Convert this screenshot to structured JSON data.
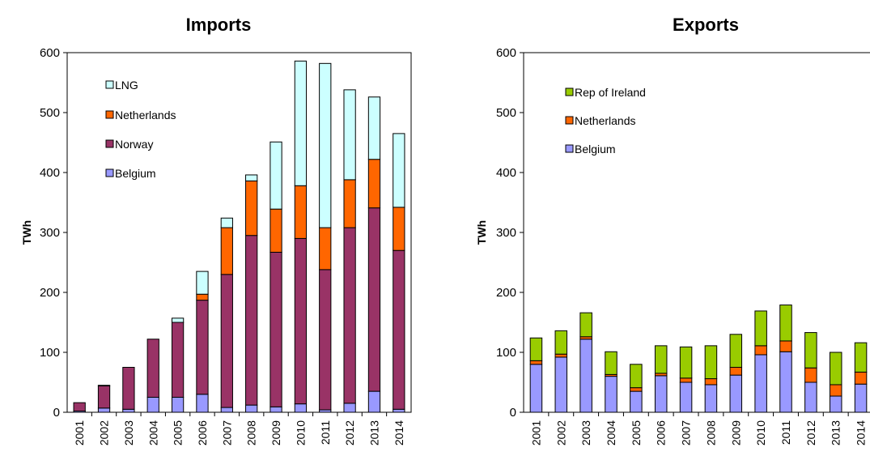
{
  "chart_data": [
    {
      "type": "bar",
      "stacked": true,
      "title": "Imports",
      "ylabel": "TWh",
      "ylim": [
        0,
        600
      ],
      "yticks": [
        0,
        100,
        200,
        300,
        400,
        500,
        600
      ],
      "grid": false,
      "legend_placement": "top-left (inside)",
      "legend_order": [
        "LNG",
        "Netherlands",
        "Norway",
        "Belgium"
      ],
      "categories": [
        "2001",
        "2002",
        "2003",
        "2004",
        "2005",
        "2006",
        "2007",
        "2008",
        "2009",
        "2010",
        "2011",
        "2012",
        "2013",
        "2014"
      ],
      "series": [
        {
          "name": "Belgium",
          "color": "#9999ff",
          "values": [
            2,
            7,
            5,
            25,
            25,
            30,
            8,
            12,
            9,
            14,
            4,
            15,
            35,
            5
          ]
        },
        {
          "name": "Norway",
          "color": "#993366",
          "values": [
            14,
            37,
            70,
            97,
            125,
            157,
            222,
            283,
            258,
            276,
            234,
            293,
            306,
            265
          ]
        },
        {
          "name": "Netherlands",
          "color": "#ff6600",
          "values": [
            0,
            1,
            0,
            0,
            0,
            10,
            78,
            91,
            72,
            88,
            70,
            80,
            81,
            72
          ]
        },
        {
          "name": "LNG",
          "color": "#ccffff",
          "values": [
            0,
            0,
            0,
            0,
            7,
            38,
            16,
            10,
            112,
            208,
            274,
            150,
            104,
            123
          ]
        }
      ]
    },
    {
      "type": "bar",
      "stacked": true,
      "title": "Exports",
      "ylabel": "TWh",
      "ylim": [
        0,
        600
      ],
      "yticks": [
        0,
        100,
        200,
        300,
        400,
        500,
        600
      ],
      "grid": false,
      "legend_placement": "top-left (inside)",
      "legend_order": [
        "Rep of Ireland",
        "Netherlands",
        "Belgium"
      ],
      "categories": [
        "2001",
        "2002",
        "2003",
        "2004",
        "2005",
        "2006",
        "2007",
        "2008",
        "2009",
        "2010",
        "2011",
        "2012",
        "2013",
        "2014"
      ],
      "series": [
        {
          "name": "Belgium",
          "color": "#9999ff",
          "values": [
            80,
            92,
            122,
            60,
            35,
            61,
            50,
            46,
            62,
            96,
            101,
            50,
            27,
            47
          ]
        },
        {
          "name": "Netherlands",
          "color": "#ff6600",
          "values": [
            6,
            5,
            4,
            3,
            6,
            4,
            7,
            10,
            13,
            15,
            18,
            24,
            19,
            20
          ]
        },
        {
          "name": "Rep of Ireland",
          "color": "#99cc00",
          "values": [
            38,
            39,
            40,
            38,
            39,
            46,
            52,
            55,
            55,
            58,
            60,
            59,
            54,
            49
          ]
        }
      ]
    }
  ]
}
